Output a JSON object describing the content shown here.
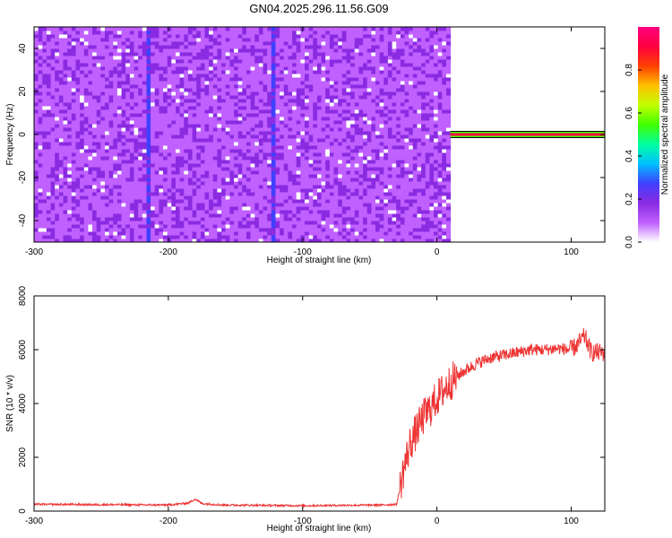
{
  "title": "GN04.2025.296.11.56.G09",
  "chart_data": [
    {
      "type": "heatmap",
      "xlabel": "Height of straight line (km)",
      "ylabel": "Frequency (Hz)",
      "xlim": [
        -300,
        125
      ],
      "ylim": [
        -50,
        50
      ],
      "xticks": [
        -300,
        -200,
        -100,
        0,
        100
      ],
      "yticks": [
        -40,
        -20,
        0,
        20,
        40
      ],
      "colorbar": {
        "label": "Normalized spectral amplitude",
        "range": [
          0,
          1
        ],
        "ticks": [
          0.0,
          0.2,
          0.4,
          0.6,
          0.8
        ],
        "tick_labels": [
          "0.0",
          "0.2",
          "0.4",
          "0.6",
          "0.8"
        ],
        "colors": [
          "#ffffff",
          "#c060ff",
          "#8a2be2",
          "#4040ff",
          "#00c0ff",
          "#00ffa0",
          "#40ff00",
          "#c0ff00",
          "#ffc000",
          "#ff4000",
          "#ff0040",
          "#ff0080"
        ]
      },
      "features": {
        "noise_region_x": [
          -300,
          10
        ],
        "vertical_streaks_x": [
          -215,
          -122
        ],
        "signal_line": {
          "x": [
            10,
            125
          ],
          "frequency": 0,
          "amplitude": 0.95
        }
      }
    },
    {
      "type": "line",
      "xlabel": "Height of straight line (km)",
      "ylabel": "SNR (10 * v/v)",
      "xlim": [
        -300,
        125
      ],
      "ylim": [
        0,
        8000
      ],
      "xticks": [
        -300,
        -200,
        -100,
        0,
        100
      ],
      "yticks": [
        0,
        2000,
        4000,
        6000,
        8000
      ],
      "color": "#ee3333",
      "series": [
        {
          "x": [
            -300,
            -280,
            -260,
            -240,
            -220,
            -200,
            -185,
            -180,
            -175,
            -160,
            -140,
            -120,
            -100,
            -80,
            -60,
            -40,
            -30,
            -25,
            -20,
            -15,
            -10,
            -5,
            0,
            5,
            10,
            20,
            30,
            40,
            50,
            60,
            70,
            80,
            90,
            100,
            105,
            110,
            115,
            120,
            125
          ],
          "y": [
            250,
            250,
            240,
            240,
            230,
            230,
            300,
            450,
            280,
            230,
            220,
            210,
            200,
            210,
            220,
            230,
            250,
            1500,
            2500,
            3000,
            3500,
            3800,
            4200,
            4500,
            4800,
            5200,
            5500,
            5700,
            5800,
            5900,
            6000,
            6000,
            6050,
            6000,
            6200,
            6500,
            5900,
            5900,
            5900
          ]
        }
      ]
    }
  ]
}
